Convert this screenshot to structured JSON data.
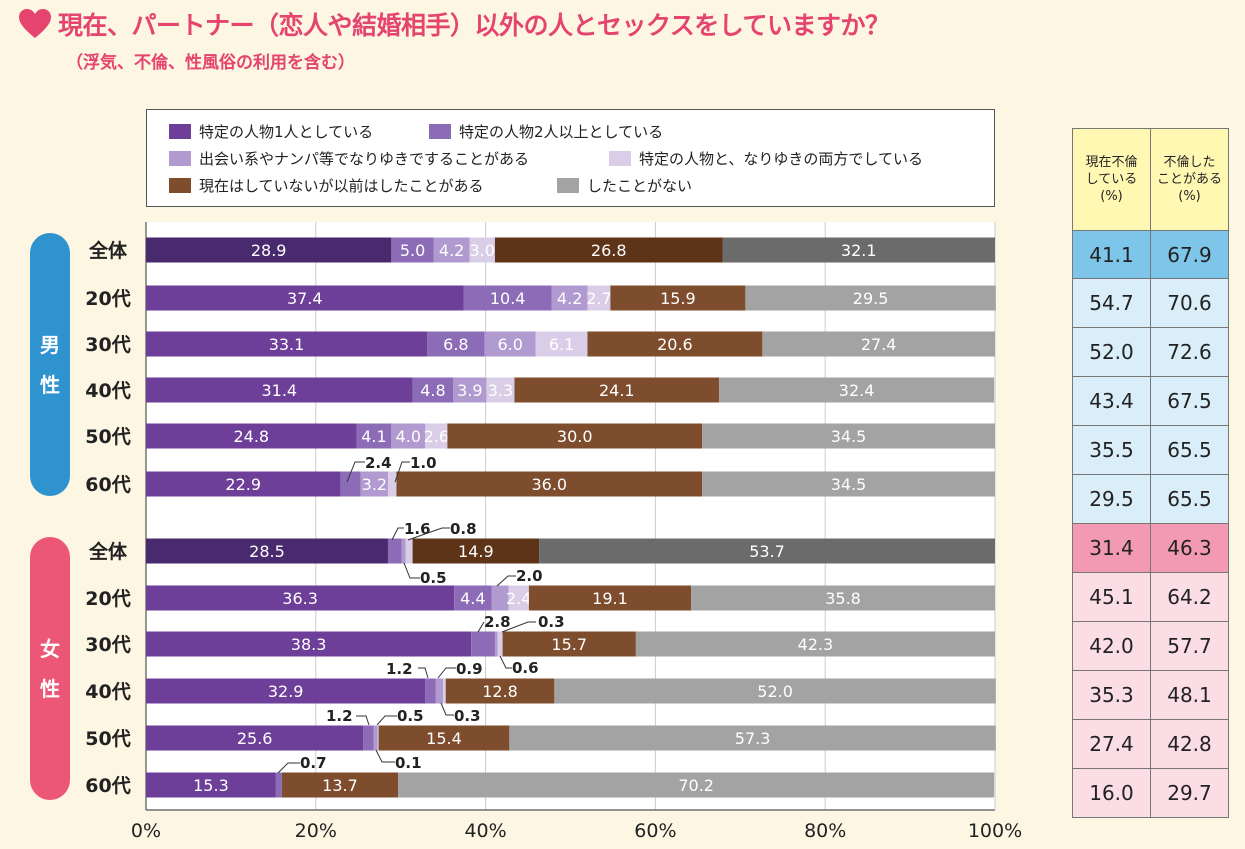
{
  "title": "現在、パートナー（恋人や結婚相手）以外の人とセックスをしていますか？",
  "subtitle": "（浮気、不倫、性風俗の利用を含む）",
  "colors": {
    "dark_purple": "#4a2a6e",
    "purple": "#6d3f99",
    "violet": "#8c6cb6",
    "lavender": "#b09ad0",
    "light_lavender": "#d9cde8",
    "brown": "#7e4d2e",
    "dark_brown": "#5e3418",
    "gray": "#a3a3a3",
    "dark_gray": "#6b6b6b",
    "male": "#2e93cf",
    "female": "#ec5677",
    "male_cell": "#d9eef9",
    "male_head": "#7dc5e9",
    "female_cell": "#fbdde6",
    "female_head": "#f29ab3",
    "header_cell": "#fff8b3"
  },
  "sides": {
    "male": [
      "男",
      "性"
    ],
    "female": [
      "女",
      "性"
    ]
  },
  "table": {
    "headers": [
      [
        "現在不倫",
        "している",
        "(%)"
      ],
      [
        "不倫した",
        "ことがある",
        "(%)"
      ]
    ]
  },
  "chart_data": {
    "type": "bar",
    "orientation": "horizontal-stacked-100",
    "title": "現在、パートナー（恋人や結婚相手）以外の人とセックスをしていますか？",
    "xlim": [
      0,
      100
    ],
    "xticks": [
      "0%",
      "20%",
      "40%",
      "60%",
      "80%",
      "100%"
    ],
    "legend": [
      "特定の人物1人としている",
      "特定の人物2人以上としている",
      "出会い系やナンパ等でなりゆきですることがある",
      "特定の人物と、なりゆきの両方でしている",
      "現在はしていないが以前はしたことがある",
      "したことがない"
    ],
    "groups": [
      {
        "name": "男性",
        "rows": [
          {
            "label": "全体",
            "values": [
              28.9,
              5.0,
              4.2,
              3.0,
              26.8,
              32.1
            ],
            "current": "41.1",
            "ever": "67.9"
          },
          {
            "label": "20代",
            "values": [
              37.4,
              10.4,
              4.2,
              2.7,
              15.9,
              29.5
            ],
            "current": "54.7",
            "ever": "70.6"
          },
          {
            "label": "30代",
            "values": [
              33.1,
              6.8,
              6.0,
              6.1,
              20.6,
              27.4
            ],
            "current": "52.0",
            "ever": "72.6"
          },
          {
            "label": "40代",
            "values": [
              31.4,
              4.8,
              3.9,
              3.3,
              24.1,
              32.4
            ],
            "current": "43.4",
            "ever": "67.5"
          },
          {
            "label": "50代",
            "values": [
              24.8,
              4.1,
              4.0,
              2.6,
              30.0,
              34.5
            ],
            "current": "35.5",
            "ever": "65.5"
          },
          {
            "label": "60代",
            "values": [
              22.9,
              2.4,
              3.2,
              1.0,
              36.0,
              34.5
            ],
            "current": "29.5",
            "ever": "65.5"
          }
        ]
      },
      {
        "name": "女性",
        "rows": [
          {
            "label": "全体",
            "values": [
              28.5,
              1.6,
              0.5,
              0.8,
              14.9,
              53.7
            ],
            "current": "31.4",
            "ever": "46.3"
          },
          {
            "label": "20代",
            "values": [
              36.3,
              4.4,
              2.0,
              2.4,
              19.1,
              35.8
            ],
            "current": "45.1",
            "ever": "64.2"
          },
          {
            "label": "30代",
            "values": [
              38.3,
              2.8,
              0.3,
              0.6,
              15.7,
              42.3
            ],
            "current": "42.0",
            "ever": "57.7"
          },
          {
            "label": "40代",
            "values": [
              32.9,
              1.2,
              0.9,
              0.3,
              12.8,
              52.0
            ],
            "current": "35.3",
            "ever": "48.1"
          },
          {
            "label": "50代",
            "values": [
              25.6,
              1.2,
              0.5,
              0.1,
              15.4,
              57.3
            ],
            "current": "27.4",
            "ever": "42.8"
          },
          {
            "label": "60代",
            "values": [
              15.3,
              0.7,
              0.0,
              0.0,
              13.7,
              70.2
            ],
            "current": "16.0",
            "ever": "29.7"
          }
        ]
      }
    ]
  }
}
